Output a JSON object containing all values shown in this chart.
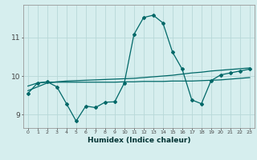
{
  "xlabel": "Humidex (Indice chaleur)",
  "background_color": "#d6eeee",
  "grid_color": "#b8d8d8",
  "line_color": "#006868",
  "xlim": [
    -0.5,
    23.5
  ],
  "ylim": [
    8.65,
    11.85
  ],
  "yticks": [
    9,
    10,
    11
  ],
  "xticks": [
    0,
    1,
    2,
    3,
    4,
    5,
    6,
    7,
    8,
    9,
    10,
    11,
    12,
    13,
    14,
    15,
    16,
    17,
    18,
    19,
    20,
    21,
    22,
    23
  ],
  "series1_x": [
    0,
    1,
    2,
    3,
    4,
    5,
    6,
    7,
    8,
    9,
    10,
    11,
    12,
    13,
    14,
    15,
    16,
    17,
    18,
    19,
    20,
    21,
    22,
    23
  ],
  "series1_y": [
    9.62,
    9.72,
    9.82,
    9.85,
    9.87,
    9.88,
    9.89,
    9.9,
    9.91,
    9.92,
    9.93,
    9.94,
    9.96,
    9.98,
    10.0,
    10.02,
    10.05,
    10.08,
    10.1,
    10.13,
    10.15,
    10.17,
    10.19,
    10.21
  ],
  "series2_x": [
    0,
    1,
    2,
    3,
    4,
    5,
    6,
    7,
    8,
    9,
    10,
    11,
    12,
    13,
    14,
    15,
    16,
    17,
    18,
    19,
    20,
    21,
    22,
    23
  ],
  "series2_y": [
    9.74,
    9.82,
    9.84,
    9.84,
    9.84,
    9.84,
    9.84,
    9.84,
    9.84,
    9.84,
    9.85,
    9.85,
    9.86,
    9.86,
    9.86,
    9.87,
    9.87,
    9.87,
    9.88,
    9.89,
    9.9,
    9.92,
    9.94,
    9.96
  ],
  "series3_x": [
    0,
    1,
    2,
    3,
    4,
    5,
    6,
    7,
    8,
    9,
    10,
    11,
    12,
    13,
    14,
    15,
    16,
    17,
    18,
    19,
    20,
    21,
    22,
    23
  ],
  "series3_y": [
    9.55,
    9.82,
    9.85,
    9.72,
    9.28,
    8.83,
    9.22,
    9.18,
    9.32,
    9.33,
    9.82,
    11.08,
    11.52,
    11.58,
    11.38,
    10.62,
    10.18,
    9.38,
    9.28,
    9.88,
    10.03,
    10.08,
    10.13,
    10.18
  ]
}
